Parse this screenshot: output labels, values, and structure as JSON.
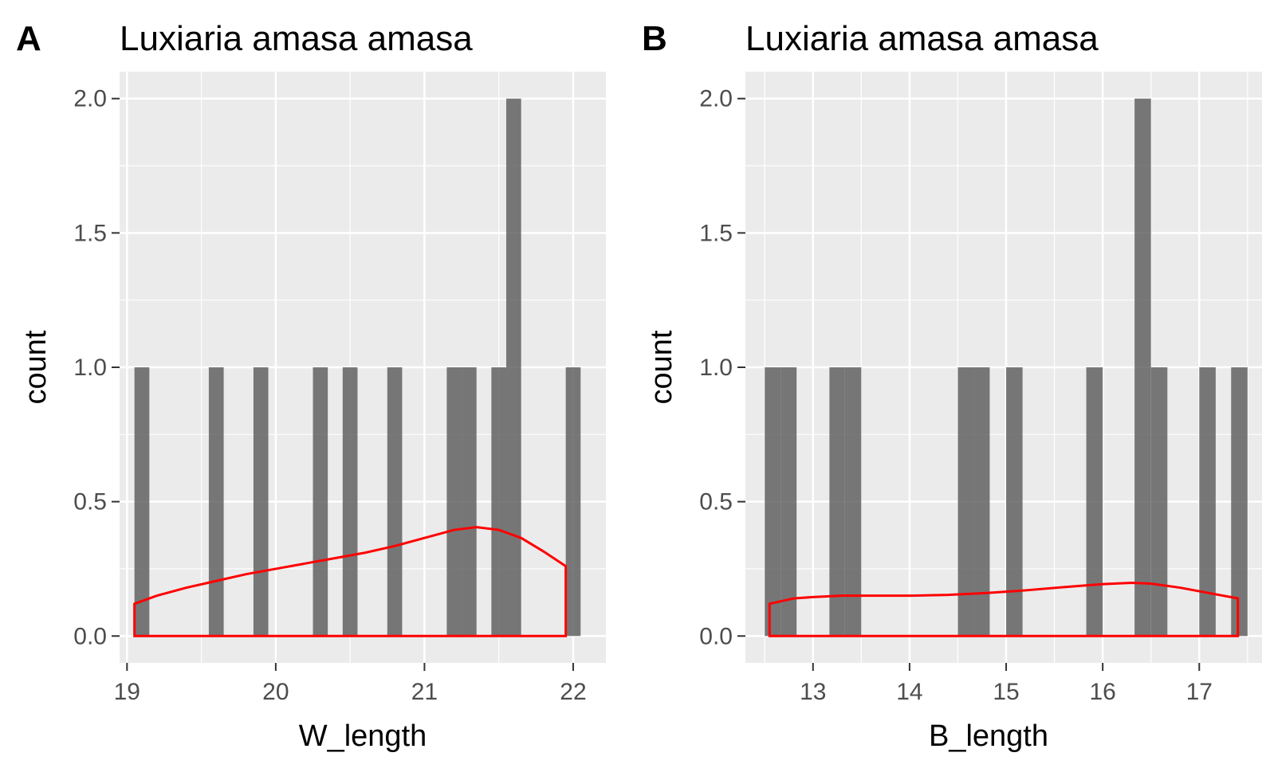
{
  "chart_data": [
    {
      "panel": "A",
      "type": "bar",
      "title": "Luxiaria amasa amasa",
      "xlabel": "W_length",
      "ylabel": "count",
      "xlim": [
        18.95,
        22.22
      ],
      "ylim": [
        -0.1,
        2.1
      ],
      "xticks": [
        19,
        20,
        21,
        22
      ],
      "xtick_labels": [
        "19",
        "20",
        "21",
        "22"
      ],
      "xminor": [
        19.5,
        20.5,
        21.5
      ],
      "yticks": [
        0,
        0.5,
        1,
        1.5,
        2
      ],
      "ytick_labels": [
        "0.0",
        "0.5",
        "1.0",
        "1.5",
        "2.0"
      ],
      "yminor": [
        0.25,
        0.75,
        1.25,
        1.75
      ],
      "grid": true,
      "bar_color": "#595959",
      "bars": [
        {
          "x0": 19.05,
          "x1": 19.15,
          "count": 1
        },
        {
          "x0": 19.55,
          "x1": 19.65,
          "count": 1
        },
        {
          "x0": 19.85,
          "x1": 19.95,
          "count": 1
        },
        {
          "x0": 20.25,
          "x1": 20.35,
          "count": 1
        },
        {
          "x0": 20.45,
          "x1": 20.55,
          "count": 1
        },
        {
          "x0": 20.75,
          "x1": 20.85,
          "count": 1
        },
        {
          "x0": 21.15,
          "x1": 21.25,
          "count": 1
        },
        {
          "x0": 21.25,
          "x1": 21.35,
          "count": 1
        },
        {
          "x0": 21.45,
          "x1": 21.55,
          "count": 1
        },
        {
          "x0": 21.55,
          "x1": 21.65,
          "count": 2
        },
        {
          "x0": 21.95,
          "x1": 22.05,
          "count": 1
        }
      ],
      "density_color": "#ff0000",
      "density": {
        "x": [
          19.05,
          19.2,
          19.4,
          19.6,
          19.8,
          20.0,
          20.2,
          20.4,
          20.6,
          20.8,
          21.0,
          21.2,
          21.35,
          21.5,
          21.65,
          21.8,
          21.95
        ],
        "y": [
          0.12,
          0.15,
          0.18,
          0.205,
          0.23,
          0.25,
          0.27,
          0.29,
          0.31,
          0.335,
          0.365,
          0.395,
          0.405,
          0.395,
          0.365,
          0.315,
          0.26
        ]
      }
    },
    {
      "panel": "B",
      "type": "bar",
      "title": "Luxiaria amasa amasa",
      "xlabel": "B_length",
      "ylabel": "count",
      "xlim": [
        12.3,
        17.65
      ],
      "ylim": [
        -0.1,
        2.1
      ],
      "xticks": [
        13,
        14,
        15,
        16,
        17
      ],
      "xtick_labels": [
        "13",
        "14",
        "15",
        "16",
        "17"
      ],
      "xminor": [
        12.5,
        13.5,
        14.5,
        15.5,
        16.5,
        17.5
      ],
      "yticks": [
        0,
        0.5,
        1,
        1.5,
        2
      ],
      "ytick_labels": [
        "0.0",
        "0.5",
        "1.0",
        "1.5",
        "2.0"
      ],
      "yminor": [
        0.25,
        0.75,
        1.25,
        1.75
      ],
      "grid": true,
      "bar_color": "#595959",
      "bars": [
        {
          "x0": 12.5,
          "x1": 12.67,
          "count": 1
        },
        {
          "x0": 12.67,
          "x1": 12.83,
          "count": 1
        },
        {
          "x0": 13.17,
          "x1": 13.33,
          "count": 1
        },
        {
          "x0": 13.33,
          "x1": 13.5,
          "count": 1
        },
        {
          "x0": 14.5,
          "x1": 14.67,
          "count": 1
        },
        {
          "x0": 14.67,
          "x1": 14.83,
          "count": 1
        },
        {
          "x0": 15.0,
          "x1": 15.17,
          "count": 1
        },
        {
          "x0": 15.83,
          "x1": 16.0,
          "count": 1
        },
        {
          "x0": 16.33,
          "x1": 16.5,
          "count": 2
        },
        {
          "x0": 16.5,
          "x1": 16.67,
          "count": 1
        },
        {
          "x0": 17.0,
          "x1": 17.17,
          "count": 1
        },
        {
          "x0": 17.33,
          "x1": 17.5,
          "count": 1
        }
      ],
      "density_color": "#ff0000",
      "density": {
        "x": [
          12.55,
          12.8,
          13.0,
          13.3,
          13.6,
          14.0,
          14.4,
          14.8,
          15.2,
          15.6,
          16.0,
          16.3,
          16.5,
          16.8,
          17.1,
          17.4
        ],
        "y": [
          0.12,
          0.14,
          0.145,
          0.15,
          0.15,
          0.15,
          0.153,
          0.16,
          0.17,
          0.182,
          0.193,
          0.198,
          0.195,
          0.18,
          0.16,
          0.14
        ]
      }
    }
  ]
}
